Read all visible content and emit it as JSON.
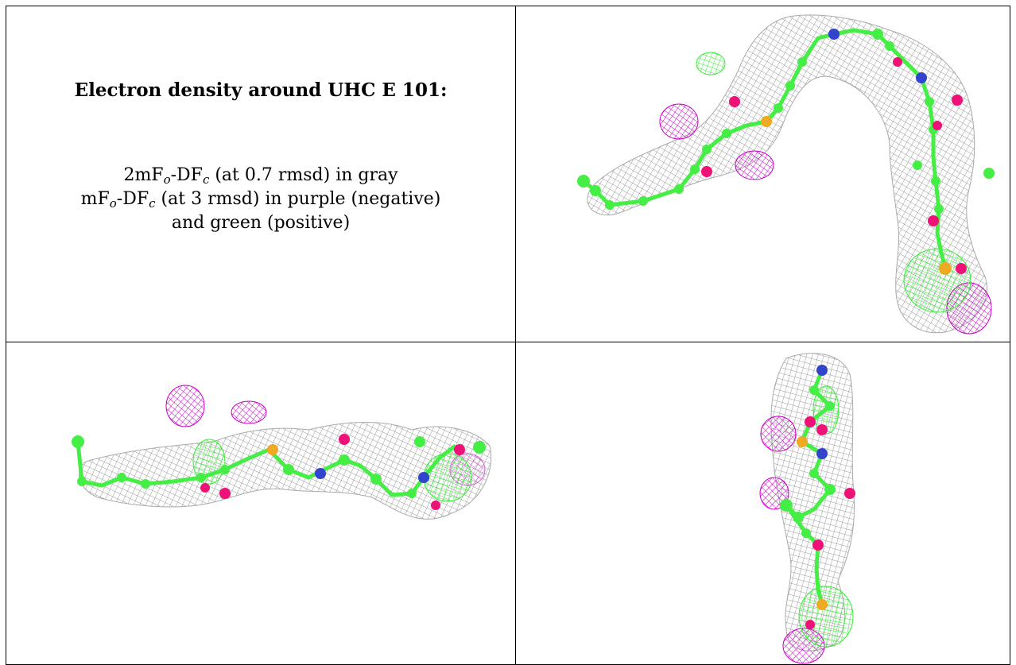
{
  "title": "Electron density around UHC E 101:",
  "legend": {
    "line1": {
      "pre": "2mF",
      "sub1": "o",
      "mid": "-DF",
      "sub2": "c",
      "post": " (at 0.7 rmsd) in gray"
    },
    "line2": {
      "pre": "mF",
      "sub1": "o",
      "mid": "-DF",
      "sub2": "c",
      "post": " (at 3 rmsd) in purple (negative)"
    },
    "line3": "and green (positive)"
  },
  "colors": {
    "mesh_gray": "#9a9a9a",
    "negative_purple": "#c800c8",
    "positive_green": "#33ee33",
    "carbon": "#44ee44",
    "oxygen": "#ee1177",
    "nitrogen": "#3344cc",
    "sulfur": "#eeaa22"
  }
}
